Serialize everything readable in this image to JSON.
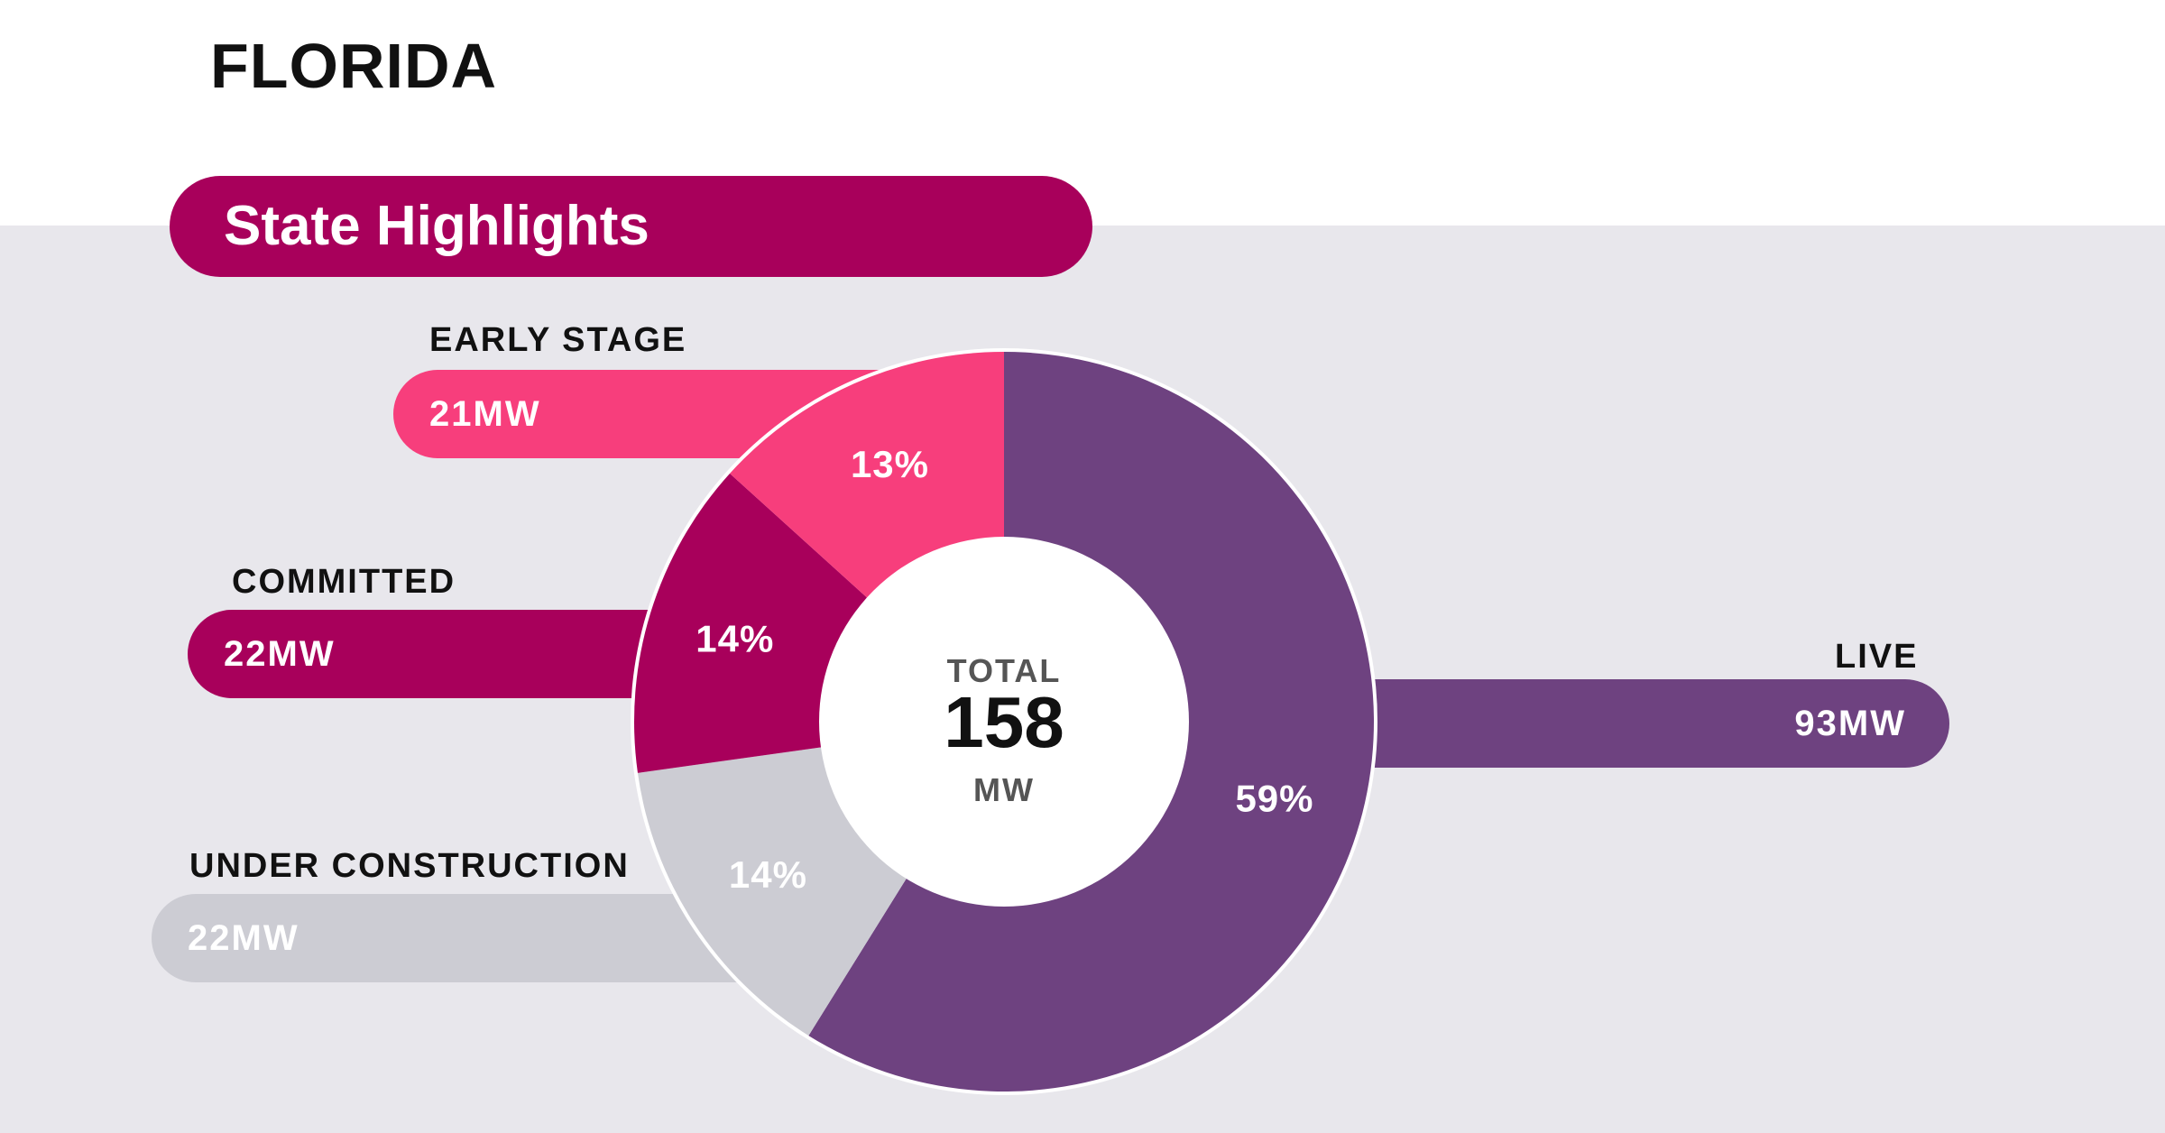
{
  "header": {
    "state": "FLORIDA",
    "highlights_title": "State Highlights"
  },
  "colors": {
    "band_bg": "#e8e7ec",
    "highlight_pill": "#a8005b"
  },
  "chart_data": {
    "type": "pie",
    "style": "donut",
    "title": "State Highlights",
    "total": {
      "label_top": "TOTAL",
      "value": "158",
      "unit": "MW"
    },
    "slices": [
      {
        "key": "live",
        "label": "LIVE",
        "value_text": "93MW",
        "value": 93,
        "percent_text": "59%",
        "percent": 59,
        "color": "#6e4280"
      },
      {
        "key": "under_construction",
        "label": "UNDER CONSTRUCTION",
        "value_text": "22MW",
        "value": 22,
        "percent_text": "14%",
        "percent": 14,
        "color": "#ccccd3"
      },
      {
        "key": "committed",
        "label": "COMMITTED",
        "value_text": "22MW",
        "value": 22,
        "percent_text": "14%",
        "percent": 14,
        "color": "#a8005b"
      },
      {
        "key": "early_stage",
        "label": "EARLY STAGE",
        "value_text": "21MW",
        "value": 21,
        "percent_text": "13%",
        "percent": 13,
        "color": "#f73e7c"
      }
    ]
  }
}
